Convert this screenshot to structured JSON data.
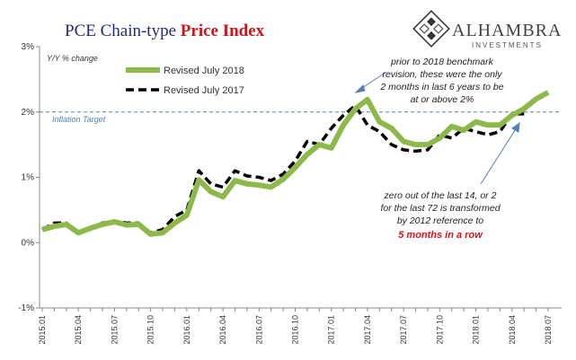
{
  "chart_data": {
    "type": "line",
    "title": "PCE Chain-type ",
    "title_highlight": "Price Index",
    "subtitle": "Y/Y % change",
    "logo": {
      "name": "ALHAMBRA",
      "tagline": "INVESTMENTS"
    },
    "categories": [
      "2015.01",
      null,
      null,
      "2015.04",
      null,
      null,
      "2015.07",
      null,
      null,
      "2015.10",
      null,
      null,
      "2016.01",
      null,
      null,
      "2016.04",
      null,
      null,
      "2016.07",
      null,
      null,
      "2016.10",
      null,
      null,
      "2017.01",
      null,
      null,
      "2017.04",
      null,
      null,
      "2017.07",
      null,
      null,
      "2017.10",
      null,
      null,
      "2018.01",
      null,
      null,
      "2018.04",
      null,
      null,
      "2018.07"
    ],
    "series": [
      {
        "name": "Revised July 2018",
        "color": "#8db84a",
        "linestyle": "solid",
        "values": [
          0.2,
          0.25,
          0.28,
          0.15,
          0.22,
          0.28,
          0.32,
          0.27,
          0.28,
          0.13,
          0.15,
          0.3,
          0.42,
          0.96,
          0.78,
          0.7,
          0.95,
          0.9,
          0.88,
          0.85,
          0.97,
          1.15,
          1.35,
          1.5,
          1.45,
          1.8,
          2.05,
          2.19,
          1.85,
          1.75,
          1.55,
          1.5,
          1.5,
          1.6,
          1.78,
          1.72,
          1.85,
          1.8,
          1.8,
          1.95,
          2.05,
          2.2,
          2.3
        ]
      },
      {
        "name": "Revised July 2017",
        "color": "#000000",
        "linestyle": "dashed",
        "values": [
          0.2,
          0.3,
          0.3,
          0.15,
          0.22,
          0.3,
          0.33,
          0.3,
          0.3,
          0.15,
          0.2,
          0.4,
          0.5,
          1.1,
          0.9,
          0.85,
          1.1,
          1.02,
          1.0,
          0.95,
          1.05,
          1.25,
          1.55,
          1.5,
          1.75,
          1.95,
          2.1,
          1.8,
          1.7,
          1.5,
          1.42,
          1.4,
          1.42,
          1.65,
          1.6,
          1.75,
          1.7,
          1.65,
          1.7,
          1.97,
          1.97,
          null,
          null
        ]
      }
    ],
    "ylim": [
      -1,
      3
    ],
    "yticks": [
      {
        "value": -1,
        "label": "-1%"
      },
      {
        "value": 0,
        "label": "0%"
      },
      {
        "value": 1,
        "label": "1%"
      },
      {
        "value": 2,
        "label": "2%"
      },
      {
        "value": 3,
        "label": "3%"
      }
    ],
    "target": {
      "value": 2,
      "label": "Inflation Target",
      "color": "#4f81bd"
    },
    "annotations": [
      {
        "lines": [
          "prior to 2018 benchmark",
          "revision, these were the only",
          "2 months in last 6 years to be",
          "at or above 2%"
        ]
      },
      {
        "lines": [
          "zero out of the last 14, or 2",
          "for the last 72 is transformed",
          "by 2012 reference to"
        ],
        "highlight": "5 months in a row"
      }
    ]
  }
}
